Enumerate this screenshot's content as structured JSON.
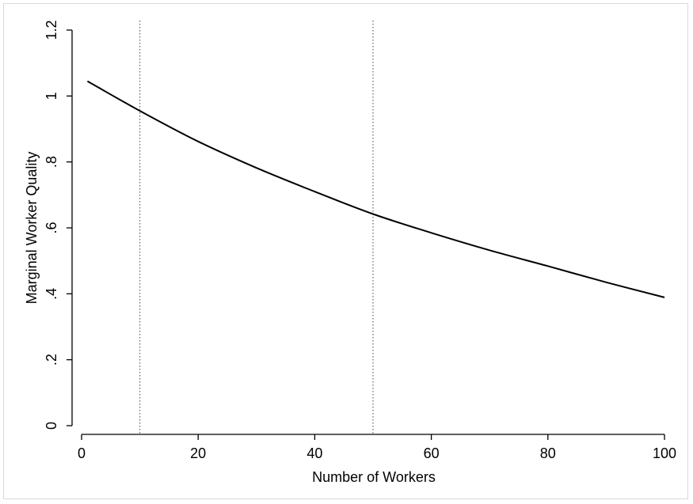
{
  "chart_data": {
    "type": "line",
    "title": "",
    "xlabel": "Number of Workers",
    "ylabel": "Marginal Worker Quality",
    "xlim": [
      0,
      100
    ],
    "ylim": [
      0,
      1.2
    ],
    "x_ticks": [
      0,
      20,
      40,
      60,
      80,
      100
    ],
    "x_tick_labels": [
      "0",
      "20",
      "40",
      "60",
      "80",
      "100"
    ],
    "y_ticks": [
      0,
      0.2,
      0.4,
      0.6,
      0.8,
      1.0,
      1.2
    ],
    "y_tick_labels": [
      "0",
      ".2",
      ".4",
      ".6",
      ".8",
      "1",
      "1.2"
    ],
    "grid": false,
    "legend": "none",
    "vertical_reference_lines": [
      {
        "x": 10,
        "style": "dotted"
      },
      {
        "x": 50,
        "style": "dotted"
      }
    ],
    "series": [
      {
        "color": "#000000",
        "x": [
          1,
          10,
          20,
          30,
          40,
          50,
          60,
          70,
          80,
          90,
          100
        ],
        "values": [
          1.045,
          0.955,
          0.862,
          0.782,
          0.71,
          0.642,
          0.585,
          0.532,
          0.484,
          0.435,
          0.389
        ]
      }
    ]
  }
}
